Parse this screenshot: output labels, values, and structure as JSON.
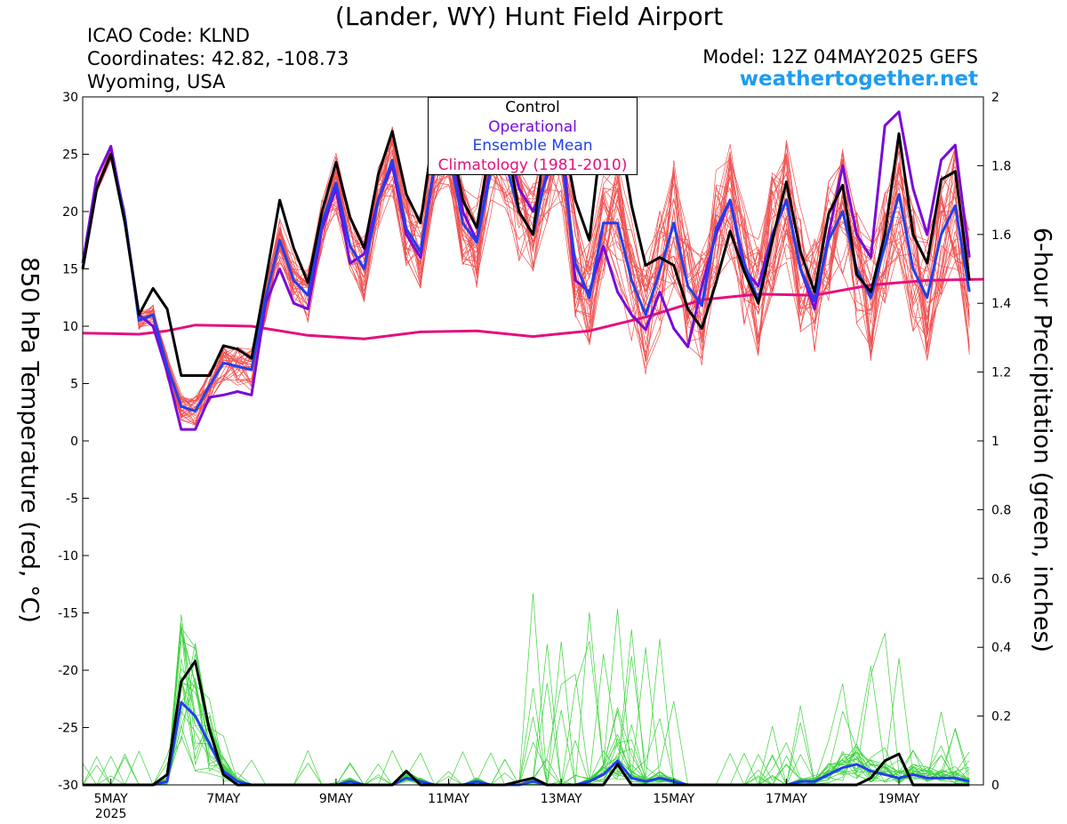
{
  "header": {
    "title": "(Lander, WY) Hunt Field Airport",
    "icao": "ICAO Code: KLND",
    "coordinates": "Coordinates: 42.82, -108.73",
    "region": "Wyoming, USA",
    "model": "Model: 12Z 04MAY2025 GEFS",
    "site": "weathertogether.net"
  },
  "chart_data": {
    "type": "line",
    "ylabel": "850 hPa Temperature (red, °C)",
    "y2label": "6-hour Precipitation (green, inches)",
    "ylim": [
      -30,
      30
    ],
    "y2lim": [
      0,
      2
    ],
    "yticks": [
      "-30",
      "-25",
      "-20",
      "-15",
      "-10",
      "-5",
      "0",
      "5",
      "10",
      "15",
      "20",
      "25",
      "30"
    ],
    "y2ticks": [
      "0",
      "0.2",
      "0.4",
      "0.6",
      "0.8",
      "1",
      "1.2",
      "1.4",
      "1.6",
      "1.8",
      "2"
    ],
    "x_start": "2025-05-04 12Z",
    "x_step_hours": 6,
    "xlim_days": [
      4.5,
      20.5
    ],
    "xticks": [
      {
        "day": 5,
        "label": "5MAY",
        "sub": "2025"
      },
      {
        "day": 7,
        "label": "7MAY"
      },
      {
        "day": 9,
        "label": "9MAY"
      },
      {
        "day": 11,
        "label": "11MAY"
      },
      {
        "day": 13,
        "label": "13MAY"
      },
      {
        "day": 15,
        "label": "15MAY"
      },
      {
        "day": 17,
        "label": "17MAY"
      },
      {
        "day": 19,
        "label": "19MAY"
      }
    ],
    "grid": false,
    "legend_position": "top-center",
    "series": [
      {
        "name": "Control",
        "color": "#000000",
        "axis": "temperature",
        "values": [
          15,
          22,
          25,
          19,
          11,
          13.3,
          11.5,
          5.7,
          5.7,
          5.7,
          8.3,
          8,
          7.2,
          14,
          21,
          16.8,
          13.8,
          20,
          24.3,
          19.5,
          16.8,
          23.2,
          27,
          21.5,
          19,
          27.5,
          27.5,
          21,
          18.6,
          26,
          27,
          20,
          18,
          27.5,
          27.5,
          21,
          17.5,
          28,
          28,
          20.5,
          15.3,
          16,
          15.3,
          11.5,
          9.8,
          13.8,
          18.3,
          14.8,
          12,
          17.5,
          22.6,
          16.5,
          13,
          19.8,
          22.3,
          14.5,
          13,
          18,
          26.8,
          18,
          15.5,
          22.8,
          23.5,
          14
        ]
      },
      {
        "name": "Operational",
        "color": "#7a0ad8",
        "axis": "temperature",
        "values": [
          15.5,
          23,
          25.7,
          19.3,
          11,
          10,
          6,
          1,
          1,
          3.8,
          4,
          4.3,
          4,
          12,
          15,
          12,
          11.5,
          18.5,
          22,
          15.5,
          16.3,
          21,
          24,
          18,
          16,
          24,
          27,
          20,
          17.5,
          24,
          27,
          22,
          20,
          23,
          27,
          14,
          13,
          17,
          13,
          11,
          9.7,
          13,
          9.8,
          8.2,
          13.5,
          18,
          21,
          15,
          13.5,
          18,
          21,
          15,
          11.5,
          18,
          24,
          18,
          16,
          27.5,
          28.7,
          22,
          18,
          24.5,
          25.8,
          16
        ]
      },
      {
        "name": "Ensemble Mean",
        "color": "#2040ee",
        "axis": "temperature",
        "values": [
          15,
          22,
          25,
          19.5,
          10.5,
          11,
          6.5,
          3,
          2.6,
          4.8,
          6.8,
          6.5,
          6.2,
          12.5,
          17.5,
          14,
          12.7,
          19,
          22.5,
          17,
          15,
          21,
          24.5,
          18.5,
          16.5,
          24,
          25.5,
          19,
          17.3,
          23.5,
          24.5,
          20,
          18,
          23.5,
          25,
          15.5,
          12.5,
          19,
          19,
          14,
          11,
          14.8,
          19,
          13.5,
          11.8,
          18.5,
          21,
          15.5,
          12.2,
          18,
          21,
          15,
          12.2,
          17.5,
          20,
          15,
          12.5,
          17,
          21.5,
          15,
          12.5,
          18,
          20.5,
          13
        ]
      },
      {
        "name": "Climatology (1981-2010)",
        "color": "#e3107e",
        "axis": "temperature",
        "days": [
          4.5,
          5.5,
          6,
          6.5,
          7.5,
          8.5,
          9.5,
          10.5,
          11.5,
          12.5,
          13.5,
          14.5,
          15.5,
          16.5,
          17.5,
          18.5,
          19.5,
          20.5
        ],
        "values": [
          9.4,
          9.3,
          9.6,
          10.1,
          10,
          9.2,
          8.9,
          9.5,
          9.6,
          9.1,
          9.6,
          10.8,
          12.3,
          12.8,
          12.7,
          13.6,
          14,
          14.1
        ]
      },
      {
        "name": "Control",
        "color": "#000000",
        "axis": "precipitation",
        "values": [
          0,
          0,
          0,
          0,
          0,
          0,
          0.03,
          0.3,
          0.36,
          0.16,
          0.03,
          0,
          0,
          0,
          0,
          0,
          0,
          0,
          0,
          0,
          0,
          0,
          0,
          0.04,
          0,
          0,
          0,
          0,
          0,
          0,
          0,
          0.01,
          0.02,
          0,
          0,
          0,
          0,
          0,
          0.06,
          0,
          0,
          0,
          0,
          0,
          0,
          0,
          0,
          0,
          0,
          0,
          0,
          0,
          0,
          0,
          0,
          0,
          0.02,
          0.07,
          0.09,
          0,
          0,
          0,
          0,
          0
        ]
      },
      {
        "name": "Ensemble Mean",
        "color": "#2040ee",
        "axis": "precipitation",
        "values": [
          0,
          0,
          0,
          0,
          0,
          0,
          0.01,
          0.24,
          0.2,
          0.12,
          0.04,
          0.01,
          0,
          0,
          0,
          0,
          0,
          0,
          0,
          0.01,
          0,
          0,
          0,
          0.02,
          0.01,
          0,
          0,
          0,
          0.01,
          0,
          0,
          0,
          0.01,
          0,
          0,
          0,
          0.01,
          0.03,
          0.07,
          0.02,
          0.01,
          0.02,
          0.01,
          0,
          0,
          0,
          0,
          0,
          0,
          0,
          0,
          0.01,
          0.01,
          0.03,
          0.05,
          0.06,
          0.04,
          0.03,
          0.02,
          0.03,
          0.02,
          0.02,
          0.02,
          0.01
        ]
      }
    ],
    "ensemble": {
      "temperature_color": "#f05050",
      "precipitation_color": "#3cd23c",
      "members": 30
    }
  }
}
